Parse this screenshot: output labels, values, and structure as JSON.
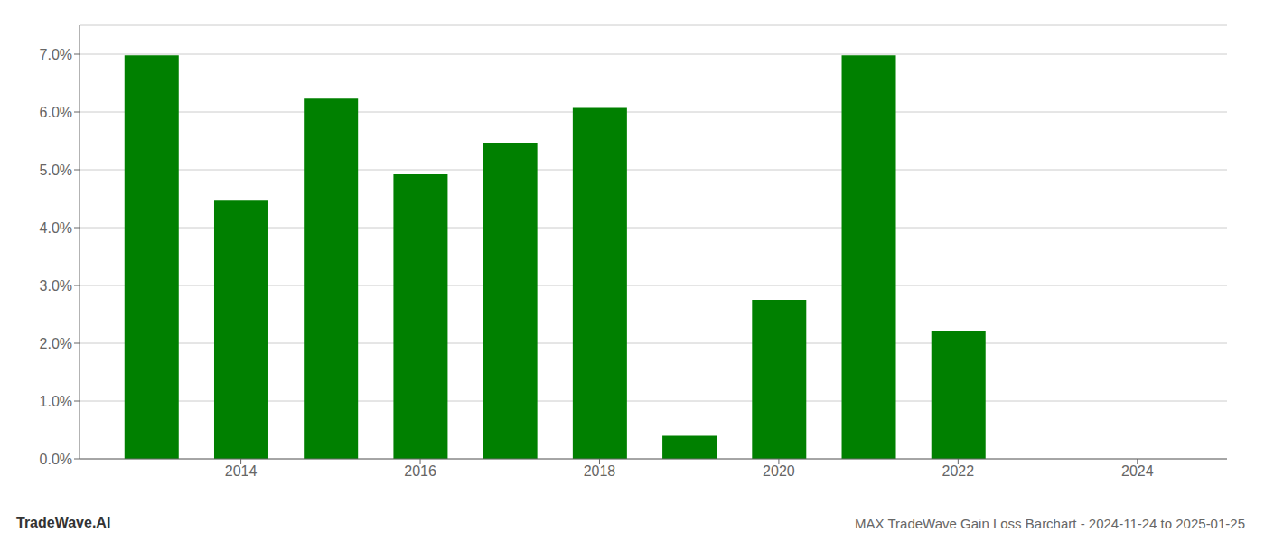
{
  "chart_data": {
    "type": "bar",
    "title": "MAX TradeWave Gain Loss Barchart - 2024-11-24 to 2025-01-25",
    "annotations": [
      {
        "text": "TradeWave.AI"
      }
    ],
    "x": [
      2013,
      2014,
      2015,
      2016,
      2017,
      2018,
      2019,
      2020,
      2021,
      2022,
      2023
    ],
    "values": [
      0.0698,
      0.0448,
      0.0623,
      0.0492,
      0.0547,
      0.0607,
      0.004,
      0.0275,
      0.0698,
      0.0222,
      0.0
    ],
    "color": "#008000",
    "ylim": [
      0,
      0.075
    ],
    "yticks": [
      {
        "value": 0.0,
        "label": "0.0%"
      },
      {
        "value": 0.01,
        "label": "1.0%"
      },
      {
        "value": 0.02,
        "label": "2.0%"
      },
      {
        "value": 0.03,
        "label": "3.0%"
      },
      {
        "value": 0.04,
        "label": "4.0%"
      },
      {
        "value": 0.05,
        "label": "5.0%"
      },
      {
        "value": 0.06,
        "label": "6.0%"
      },
      {
        "value": 0.07,
        "label": "7.0%"
      }
    ],
    "xlim": [
      2012.2,
      2025.0
    ],
    "xticks": [
      2014,
      2016,
      2018,
      2020,
      2022,
      2024
    ],
    "grid": true
  }
}
